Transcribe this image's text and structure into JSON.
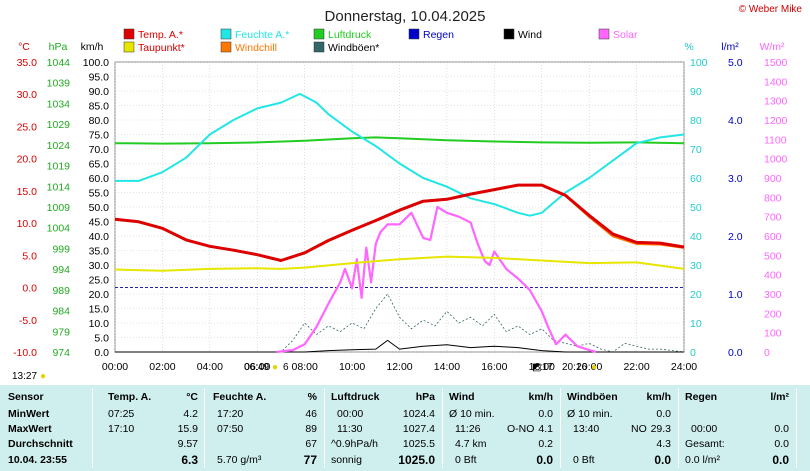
{
  "title": "Donnerstag, 10.04.2025",
  "credit": "© Weber Mike",
  "legend": [
    {
      "label": "Temp. A.*",
      "color": "#dd0000"
    },
    {
      "label": "Feuchte A.*",
      "color": "#22e6e6"
    },
    {
      "label": "Luftdruck",
      "color": "#22cc22"
    },
    {
      "label": "Regen",
      "color": "#0000cc"
    },
    {
      "label": "Wind",
      "color": "#000000"
    },
    {
      "label": "Solar",
      "color": "#ff66ff"
    },
    {
      "label": "Taupunkt*",
      "color": "#e6e600"
    },
    {
      "label": "Windchill",
      "color": "#ff7700"
    },
    {
      "label": "Windböen*",
      "color": "#336666"
    }
  ],
  "axes": {
    "temp": {
      "unit": "°C",
      "color": "#dd0000",
      "ticks": [
        "35.0",
        "30.0",
        "25.0",
        "20.0",
        "15.0",
        "10.0",
        "5.0",
        "0.0",
        "-5.0",
        "-10.0"
      ]
    },
    "pressure": {
      "unit": "hPa",
      "color": "#22aa22",
      "ticks": [
        "1044",
        "1039",
        "1034",
        "1029",
        "1024",
        "1019",
        "1014",
        "1009",
        "1004",
        "999",
        "994",
        "989",
        "984",
        "979",
        "974"
      ]
    },
    "wind": {
      "unit": "km/h",
      "color": "#000000",
      "ticks": [
        "100.0",
        "95.0",
        "90.0",
        "85.0",
        "80.0",
        "75.0",
        "70.0",
        "65.0",
        "60.0",
        "55.0",
        "50.0",
        "45.0",
        "40.0",
        "35.0",
        "30.0",
        "25.0",
        "20.0",
        "15.0",
        "10.0",
        "5.0",
        "0.0"
      ]
    },
    "humidity": {
      "unit": "%",
      "color": "#22cccc",
      "ticks": [
        "100",
        "90",
        "80",
        "70",
        "60",
        "50",
        "40",
        "30",
        "20",
        "10",
        "0"
      ]
    },
    "rain": {
      "unit": "l/m²",
      "color": "#0000cc",
      "ticks": [
        "5.0",
        "4.0",
        "3.0",
        "2.0",
        "1.0",
        "0.0"
      ]
    },
    "solar": {
      "unit": "W/m²",
      "color": "#ff66ff",
      "ticks": [
        "1500",
        "1400",
        "1300",
        "1200",
        "1100",
        "1000",
        "900",
        "800",
        "700",
        "600",
        "500",
        "400",
        "300",
        "200",
        "100",
        "0"
      ]
    },
    "x_ticks": [
      "00:00",
      "02:00",
      "04:00",
      "06:00",
      "08:00",
      "10:00",
      "12:00",
      "14:00",
      "16:00",
      "18:00",
      "20:00",
      "22:00",
      "24:00"
    ]
  },
  "strip": {
    "moonrise": "13:27",
    "sunrise": "06:49",
    "sunrise_extra": "6",
    "sunset": "20:16",
    "moon_phase": "17"
  },
  "chart_data": {
    "type": "line",
    "x_unit": "hours",
    "xlim": [
      0,
      24
    ],
    "series": [
      {
        "name": "Temp. A.*",
        "axis": "temp",
        "x": [
          0,
          1,
          2,
          3,
          4,
          5,
          6,
          7,
          8,
          9,
          10,
          11,
          12,
          13,
          14,
          15,
          16,
          17,
          18,
          19,
          20,
          21,
          22,
          23,
          24
        ],
        "values": [
          10.6,
          10.2,
          9.2,
          7.4,
          6.4,
          5.8,
          5.1,
          4.2,
          5.4,
          7.3,
          8.9,
          10.4,
          12.0,
          13.4,
          13.7,
          14.5,
          15.2,
          15.9,
          15.9,
          14.3,
          11.2,
          8.3,
          7.0,
          6.9,
          6.3
        ]
      },
      {
        "name": "Taupunkt*",
        "axis": "temp",
        "x": [
          0,
          2,
          4,
          6,
          7,
          8,
          10,
          12,
          14,
          16,
          18,
          20,
          22,
          24
        ],
        "values": [
          2.8,
          2.6,
          2.9,
          3.0,
          2.9,
          3.1,
          3.8,
          4.4,
          4.8,
          4.6,
          4.2,
          3.8,
          3.9,
          2.9
        ]
      },
      {
        "name": "Windchill",
        "axis": "temp",
        "x": [
          0,
          1,
          2,
          3,
          4,
          5,
          6,
          7,
          8,
          9,
          10,
          11,
          12,
          13,
          14,
          15,
          16,
          17,
          18,
          19,
          20,
          21,
          22,
          23,
          24
        ],
        "values": [
          10.6,
          10.2,
          9.2,
          7.4,
          6.4,
          5.8,
          5.1,
          4.2,
          5.4,
          7.3,
          8.9,
          10.4,
          12.0,
          13.4,
          13.7,
          14.5,
          15.2,
          15.9,
          15.9,
          14.3,
          11.0,
          8.0,
          6.8,
          6.7,
          6.2
        ]
      },
      {
        "name": "Feuchte A.*",
        "axis": "humidity",
        "x": [
          0,
          1,
          2,
          3,
          4,
          5,
          6,
          7,
          7.8,
          8.5,
          9,
          10,
          11,
          12,
          13,
          14,
          15,
          16,
          17,
          17.5,
          18,
          19,
          20,
          21,
          22,
          23,
          24
        ],
        "values": [
          59,
          59,
          62,
          67,
          75,
          80,
          84,
          86,
          89,
          86,
          82,
          76,
          71,
          65,
          60,
          57,
          53,
          51,
          48,
          47,
          48,
          55,
          60,
          66,
          72,
          74,
          75
        ]
      },
      {
        "name": "Luftdruck",
        "axis": "pressure",
        "x": [
          0,
          2,
          4,
          6,
          8,
          10,
          11,
          12,
          14,
          16,
          18,
          20,
          22,
          24
        ],
        "values": [
          1024.4,
          1024.3,
          1024.4,
          1024.6,
          1025.0,
          1025.6,
          1025.8,
          1025.6,
          1025.1,
          1024.8,
          1024.6,
          1024.5,
          1024.6,
          1024.4
        ]
      },
      {
        "name": "Solar",
        "axis": "solar",
        "x": [
          6.8,
          7.5,
          8.0,
          8.5,
          9.0,
          9.5,
          9.7,
          10.0,
          10.2,
          10.4,
          10.6,
          10.8,
          11.0,
          11.2,
          11.5,
          12.0,
          12.5,
          13.0,
          13.3,
          13.6,
          14.0,
          14.5,
          15.0,
          15.3,
          15.6,
          15.8,
          16.0,
          16.5,
          17.0,
          17.5,
          18.0,
          18.3,
          18.6,
          19.0,
          19.5,
          20.0,
          20.3
        ],
        "values": [
          0,
          10,
          40,
          130,
          250,
          360,
          430,
          330,
          480,
          280,
          540,
          360,
          560,
          620,
          660,
          660,
          720,
          590,
          580,
          750,
          720,
          700,
          670,
          560,
          470,
          450,
          520,
          430,
          380,
          320,
          210,
          120,
          40,
          90,
          30,
          10,
          0
        ]
      },
      {
        "name": "Windböen*",
        "axis": "wind",
        "x": [
          0,
          1,
          2,
          3,
          4,
          5,
          6,
          7,
          7.5,
          8,
          8.5,
          9,
          9.5,
          10,
          10.5,
          11,
          11.5,
          12,
          12.5,
          13,
          13.5,
          14,
          14.5,
          15,
          15.5,
          16,
          16.5,
          17,
          17.5,
          18,
          18.5,
          19,
          19.5,
          20,
          20.5,
          21,
          21.5,
          22,
          22.5,
          23,
          24
        ],
        "values": [
          0,
          0,
          0,
          0,
          0,
          0,
          0,
          0,
          4,
          10,
          6,
          9,
          7,
          10,
          8,
          15,
          20,
          12,
          8,
          11,
          9,
          14,
          10,
          12,
          9,
          13,
          7,
          9,
          6,
          8,
          4,
          3,
          2,
          3,
          1,
          0,
          3,
          2,
          1,
          1,
          0
        ]
      },
      {
        "name": "Wind",
        "axis": "wind",
        "x": [
          0,
          8,
          9,
          10,
          11,
          11.5,
          12,
          13,
          14,
          15,
          16,
          17,
          18,
          19,
          24
        ],
        "values": [
          0,
          0,
          0.5,
          0.8,
          1.0,
          4.0,
          1.0,
          2.0,
          2.5,
          1.5,
          2.0,
          1.5,
          0.5,
          0,
          0
        ]
      }
    ]
  },
  "table": {
    "headers": {
      "sensor": "Sensor",
      "temp": "Temp. A.",
      "temp_unit": "°C",
      "hum": "Feuchte A.",
      "hum_unit": "%",
      "press": "Luftdruck",
      "press_unit": "hPa",
      "wind": "Wind",
      "wind_unit": "km/h",
      "gust": "Windböen",
      "gust_unit": "km/h",
      "rain": "Regen",
      "rain_unit": "l/m²"
    },
    "rows": {
      "min": {
        "label": "MinWert",
        "temp_time": "07:25",
        "temp": "4.2",
        "hum_time": "17:20",
        "hum": "46",
        "press_time": "00:00",
        "press": "1024.4",
        "wind_time": "Ø 10 min.",
        "wind": "0.0",
        "gust_time": "Ø 10 min.",
        "gust": "0.0",
        "rain_time": "",
        "rain": ""
      },
      "max": {
        "label": "MaxWert",
        "temp_time": "17:10",
        "temp": "15.9",
        "hum_time": "07:50",
        "hum": "89",
        "press_time": "11:30",
        "press": "1027.4",
        "wind_time": "11:26",
        "wind_dir": "O-NO",
        "wind": "4.1",
        "gust_time": "13:40",
        "gust_dir": "NO",
        "gust": "29.3",
        "rain_time": "00:00",
        "rain": "0.0"
      },
      "avg": {
        "label": "Durchschnitt",
        "temp": "9.57",
        "hum": "67",
        "press_time": "^0.9hPa/h",
        "press": "1025.5",
        "wind_time": "4.7 km",
        "wind": "0.2",
        "gust": "4.3",
        "rain_time": "Gesamt:",
        "rain": "0.0"
      },
      "now": {
        "label": "10.04. 23:55",
        "temp": "6.3",
        "hum_time": "5.70 g/m³",
        "hum": "77",
        "press_time": "sonnig",
        "press": "1025.0",
        "wind_time": "0 Bft",
        "wind": "0.0",
        "gust_time": "0 Bft",
        "gust": "0.0",
        "rain_time": "0.0 l/m²",
        "rain": "0.0"
      }
    }
  }
}
